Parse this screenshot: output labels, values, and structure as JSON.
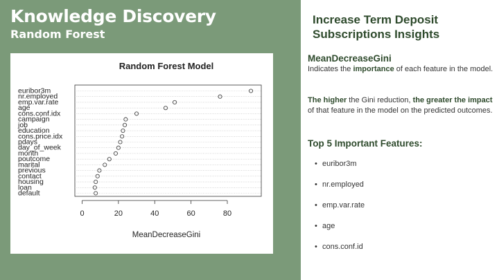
{
  "slide": {
    "title": "Knowledge Discovery",
    "subtitle": "Random Forest"
  },
  "insights": {
    "title": "Increase Term Deposit Subscriptions Insights",
    "metric_heading": "MeanDecreaseGini",
    "p1_before": "Indicates the ",
    "p1_bold": "importance",
    "p1_after": " of each feature in the model.",
    "p2_bold1": "The higher",
    "p2_mid": " the Gini reduction, ",
    "p2_bold2": "the greater the impact",
    "p2_after": " of that feature in the model on the predicted outcomes.",
    "top5_heading": "Top 5 Important Features:",
    "bullet": "•",
    "top5": [
      "euribor3m",
      "nr.employed",
      "emp.var.rate",
      "age",
      "cons.conf.id"
    ]
  },
  "colors": {
    "left_panel": "#7b9a79",
    "heading_green": "#2e4a2c"
  },
  "chart_data": {
    "type": "scatter",
    "title": "Random Forest Model",
    "xlabel": "MeanDecreaseGini",
    "ylabel": "",
    "xlim": [
      0,
      95
    ],
    "xticks": [
      0,
      20,
      40,
      60,
      80
    ],
    "features": [
      "euribor3m",
      "nr.employed",
      "emp.var.rate",
      "age",
      "cons.conf.idx",
      "campaign",
      "job",
      "education",
      "cons.price.idx",
      "pdays",
      "day_of_week",
      "month",
      "poutcome",
      "marital",
      "previous",
      "contact",
      "housing",
      "loan",
      "default"
    ],
    "values": [
      93,
      76,
      51,
      46,
      30,
      24,
      23.5,
      22.5,
      22,
      21,
      20,
      18.5,
      15,
      12.5,
      9.5,
      8.5,
      7.5,
      7,
      7.5
    ]
  }
}
